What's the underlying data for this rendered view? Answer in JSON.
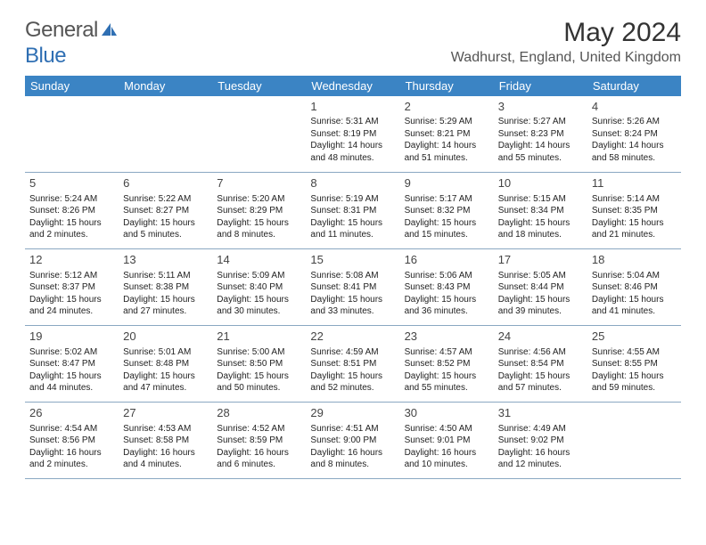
{
  "logo": {
    "word1": "General",
    "word2": "Blue"
  },
  "title": "May 2024",
  "location": "Wadhurst, England, United Kingdom",
  "colors": {
    "header_bg": "#3b84c4",
    "header_text": "#ffffff",
    "border": "#8aa8c2",
    "logo_gray": "#555555",
    "logo_blue": "#2f6fb3"
  },
  "dayHeaders": [
    "Sunday",
    "Monday",
    "Tuesday",
    "Wednesday",
    "Thursday",
    "Friday",
    "Saturday"
  ],
  "weeks": [
    [
      null,
      null,
      null,
      {
        "d": "1",
        "sr": "5:31 AM",
        "ss": "8:19 PM",
        "dl": "14 hours and 48 minutes."
      },
      {
        "d": "2",
        "sr": "5:29 AM",
        "ss": "8:21 PM",
        "dl": "14 hours and 51 minutes."
      },
      {
        "d": "3",
        "sr": "5:27 AM",
        "ss": "8:23 PM",
        "dl": "14 hours and 55 minutes."
      },
      {
        "d": "4",
        "sr": "5:26 AM",
        "ss": "8:24 PM",
        "dl": "14 hours and 58 minutes."
      }
    ],
    [
      {
        "d": "5",
        "sr": "5:24 AM",
        "ss": "8:26 PM",
        "dl": "15 hours and 2 minutes."
      },
      {
        "d": "6",
        "sr": "5:22 AM",
        "ss": "8:27 PM",
        "dl": "15 hours and 5 minutes."
      },
      {
        "d": "7",
        "sr": "5:20 AM",
        "ss": "8:29 PM",
        "dl": "15 hours and 8 minutes."
      },
      {
        "d": "8",
        "sr": "5:19 AM",
        "ss": "8:31 PM",
        "dl": "15 hours and 11 minutes."
      },
      {
        "d": "9",
        "sr": "5:17 AM",
        "ss": "8:32 PM",
        "dl": "15 hours and 15 minutes."
      },
      {
        "d": "10",
        "sr": "5:15 AM",
        "ss": "8:34 PM",
        "dl": "15 hours and 18 minutes."
      },
      {
        "d": "11",
        "sr": "5:14 AM",
        "ss": "8:35 PM",
        "dl": "15 hours and 21 minutes."
      }
    ],
    [
      {
        "d": "12",
        "sr": "5:12 AM",
        "ss": "8:37 PM",
        "dl": "15 hours and 24 minutes."
      },
      {
        "d": "13",
        "sr": "5:11 AM",
        "ss": "8:38 PM",
        "dl": "15 hours and 27 minutes."
      },
      {
        "d": "14",
        "sr": "5:09 AM",
        "ss": "8:40 PM",
        "dl": "15 hours and 30 minutes."
      },
      {
        "d": "15",
        "sr": "5:08 AM",
        "ss": "8:41 PM",
        "dl": "15 hours and 33 minutes."
      },
      {
        "d": "16",
        "sr": "5:06 AM",
        "ss": "8:43 PM",
        "dl": "15 hours and 36 minutes."
      },
      {
        "d": "17",
        "sr": "5:05 AM",
        "ss": "8:44 PM",
        "dl": "15 hours and 39 minutes."
      },
      {
        "d": "18",
        "sr": "5:04 AM",
        "ss": "8:46 PM",
        "dl": "15 hours and 41 minutes."
      }
    ],
    [
      {
        "d": "19",
        "sr": "5:02 AM",
        "ss": "8:47 PM",
        "dl": "15 hours and 44 minutes."
      },
      {
        "d": "20",
        "sr": "5:01 AM",
        "ss": "8:48 PM",
        "dl": "15 hours and 47 minutes."
      },
      {
        "d": "21",
        "sr": "5:00 AM",
        "ss": "8:50 PM",
        "dl": "15 hours and 50 minutes."
      },
      {
        "d": "22",
        "sr": "4:59 AM",
        "ss": "8:51 PM",
        "dl": "15 hours and 52 minutes."
      },
      {
        "d": "23",
        "sr": "4:57 AM",
        "ss": "8:52 PM",
        "dl": "15 hours and 55 minutes."
      },
      {
        "d": "24",
        "sr": "4:56 AM",
        "ss": "8:54 PM",
        "dl": "15 hours and 57 minutes."
      },
      {
        "d": "25",
        "sr": "4:55 AM",
        "ss": "8:55 PM",
        "dl": "15 hours and 59 minutes."
      }
    ],
    [
      {
        "d": "26",
        "sr": "4:54 AM",
        "ss": "8:56 PM",
        "dl": "16 hours and 2 minutes."
      },
      {
        "d": "27",
        "sr": "4:53 AM",
        "ss": "8:58 PM",
        "dl": "16 hours and 4 minutes."
      },
      {
        "d": "28",
        "sr": "4:52 AM",
        "ss": "8:59 PM",
        "dl": "16 hours and 6 minutes."
      },
      {
        "d": "29",
        "sr": "4:51 AM",
        "ss": "9:00 PM",
        "dl": "16 hours and 8 minutes."
      },
      {
        "d": "30",
        "sr": "4:50 AM",
        "ss": "9:01 PM",
        "dl": "16 hours and 10 minutes."
      },
      {
        "d": "31",
        "sr": "4:49 AM",
        "ss": "9:02 PM",
        "dl": "16 hours and 12 minutes."
      },
      null
    ]
  ],
  "labels": {
    "sunrise": "Sunrise: ",
    "sunset": "Sunset: ",
    "daylight": "Daylight: "
  }
}
